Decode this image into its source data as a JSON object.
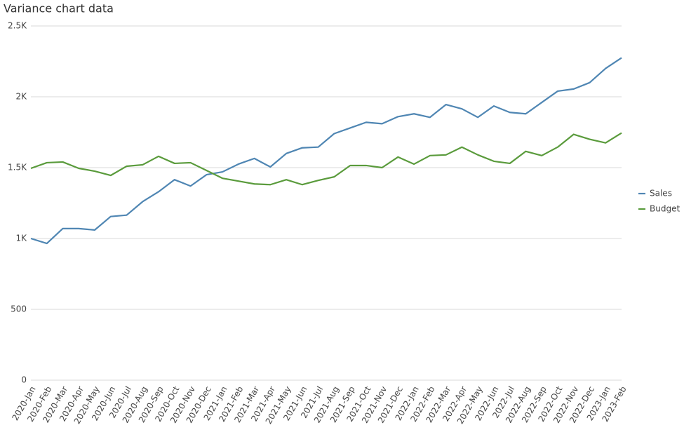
{
  "chart_data": {
    "type": "line",
    "title": "Variance chart data",
    "categories": [
      "2020-Jan",
      "2020-Feb",
      "2020-Mar",
      "2020-Apr",
      "2020-May",
      "2020-Jun",
      "2020-Jul",
      "2020-Aug",
      "2020-Sep",
      "2020-Oct",
      "2020-Nov",
      "2020-Dec",
      "2021-Jan",
      "2021-Feb",
      "2021-Mar",
      "2021-Apr",
      "2021-May",
      "2021-Jun",
      "2021-Jul",
      "2021-Aug",
      "2021-Sep",
      "2021-Oct",
      "2021-Nov",
      "2021-Dec",
      "2022-Jan",
      "2022-Feb",
      "2022-Mar",
      "2022-Apr",
      "2022-May",
      "2022-Jun",
      "2022-Jul",
      "2022-Aug",
      "2022-Sep",
      "2022-Oct",
      "2022-Nov",
      "2022-Dec",
      "2023-Jan",
      "2023-Feb"
    ],
    "series": [
      {
        "name": "Sales",
        "color": "#4f86b3",
        "values": [
          1000,
          965,
          1070,
          1070,
          1060,
          1155,
          1165,
          1260,
          1330,
          1415,
          1370,
          1450,
          1470,
          1525,
          1565,
          1505,
          1600,
          1640,
          1645,
          1740,
          1780,
          1820,
          1810,
          1860,
          1880,
          1855,
          1945,
          1915,
          1855,
          1935,
          1890,
          1880,
          1960,
          2040,
          2055,
          2100,
          2200,
          2275
        ]
      },
      {
        "name": "Budget",
        "color": "#5a9b3c",
        "values": [
          1495,
          1535,
          1540,
          1495,
          1475,
          1445,
          1510,
          1520,
          1580,
          1530,
          1535,
          1480,
          1425,
          1405,
          1385,
          1380,
          1415,
          1380,
          1410,
          1435,
          1515,
          1515,
          1500,
          1575,
          1525,
          1585,
          1590,
          1645,
          1590,
          1545,
          1530,
          1615,
          1585,
          1645,
          1735,
          1700,
          1675,
          1745
        ]
      }
    ],
    "ylim": [
      0,
      2500
    ],
    "yticks": [
      0,
      500,
      {
        "value": 1000,
        "label": "1K"
      },
      {
        "value": 1500,
        "label": "1.5K"
      },
      {
        "value": 2000,
        "label": "2K"
      },
      {
        "value": 2500,
        "label": "2.5K"
      }
    ],
    "grid": true,
    "legend": "right"
  }
}
